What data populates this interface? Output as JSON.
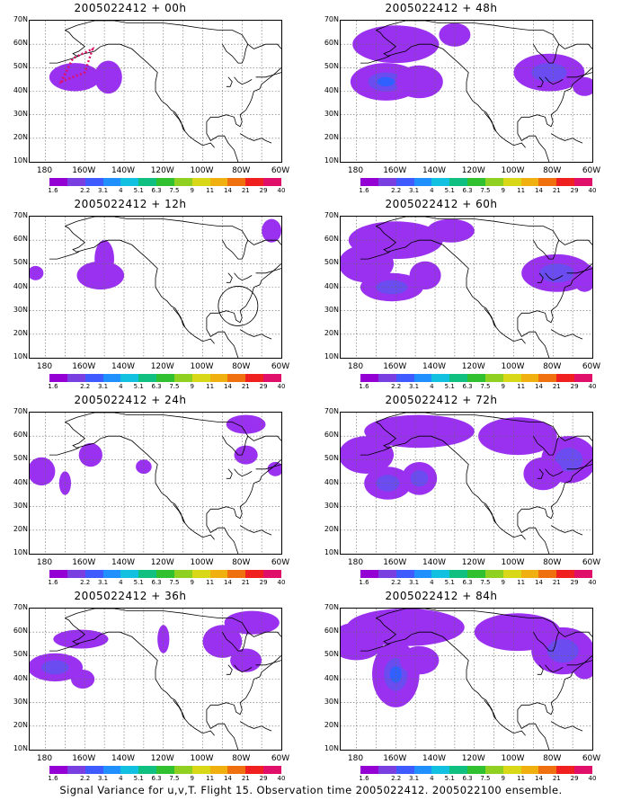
{
  "panels": [
    {
      "title": "2005022412 + 00h",
      "hours": 0
    },
    {
      "title": "2005022412 + 12h",
      "hours": 12
    },
    {
      "title": "2005022412 + 24h",
      "hours": 24
    },
    {
      "title": "2005022412 + 36h",
      "hours": 36
    },
    {
      "title": "2005022412 + 48h",
      "hours": 48
    },
    {
      "title": "2005022412 + 60h",
      "hours": 60
    },
    {
      "title": "2005022412 + 72h",
      "hours": 72
    },
    {
      "title": "2005022412 + 84h",
      "hours": 84
    }
  ],
  "lat_labels": [
    "70N",
    "60N",
    "50N",
    "40N",
    "30N",
    "20N",
    "10N"
  ],
  "lon_labels": [
    "180",
    "160W",
    "140W",
    "120W",
    "100W",
    "80W",
    "60W"
  ],
  "colorbar": {
    "labels": [
      "1.6",
      "2.2",
      "3.1",
      "4",
      "5.1",
      "6.3",
      "7.5",
      "9",
      "11",
      "14",
      "21",
      "29",
      "40"
    ],
    "colors": [
      "#9400d3",
      "#7a3fe0",
      "#3f5bff",
      "#2090ff",
      "#12c0e0",
      "#10c080",
      "#30c030",
      "#90d020",
      "#d8d818",
      "#f0b010",
      "#f07010",
      "#f02020",
      "#e0106a"
    ]
  },
  "caption": "Signal Variance for u,v,T. Flight 15. Observation time 2005022412. 2005022100 ensemble."
}
